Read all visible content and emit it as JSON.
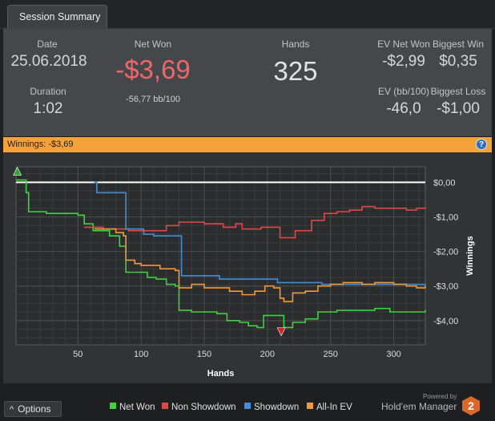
{
  "tab": {
    "label": "Session Summary"
  },
  "summary": {
    "date_label": "Date",
    "date_value": "25.06.2018",
    "duration_label": "Duration",
    "duration_value": "1:02",
    "net_won_label": "Net Won",
    "net_won_value": "-$3,69",
    "net_won_bb": "-56,77 bb/100",
    "hands_label": "Hands",
    "hands_value": "325",
    "ev_net_won_label": "EV Net Won",
    "ev_net_won_value": "-$2,99",
    "biggest_win_label": "Biggest Win",
    "biggest_win_value": "$0,35",
    "ev_bb_label": "EV (bb/100)",
    "ev_bb_value": "-46,0",
    "biggest_loss_label": "Biggest Loss",
    "biggest_loss_value": "-$1,00"
  },
  "winnings_bar": {
    "label": "Winnings:  -$3,69",
    "help_glyph": "?"
  },
  "bottom": {
    "options_label": "Options",
    "options_glyph": "^",
    "powered_by": "Powered by",
    "brand_name": "Hold'em Manager"
  },
  "colors": {
    "net_won": "#3fd13f",
    "non_showdown": "#e04848",
    "showdown": "#3d8fd9",
    "allin_ev": "#f09a3a",
    "accent_red_text": "#f06666",
    "winnings_bar": "#f3a23c"
  },
  "chart_data": {
    "type": "line",
    "xlabel": "Hands",
    "ylabel": "Winnings",
    "xlim": [
      1,
      325
    ],
    "ylim": [
      -4.7,
      0.45
    ],
    "x_ticks": [
      50,
      100,
      150,
      200,
      250,
      300
    ],
    "y_ticks": [
      0,
      -1,
      -2,
      -3,
      -4
    ],
    "y_tick_labels": [
      "$0,00",
      "-$1,00",
      "-$2,00",
      "-$3,00",
      "-$4,00"
    ],
    "grid": true,
    "legend_position": "bottom",
    "series": [
      {
        "name": "Net Won",
        "color": "#3fd13f",
        "points": [
          [
            1,
            0.07
          ],
          [
            6,
            0.07
          ],
          [
            9,
            -0.3
          ],
          [
            11,
            -0.85
          ],
          [
            25,
            -0.9
          ],
          [
            50,
            -0.95
          ],
          [
            55,
            -1.2
          ],
          [
            62,
            -1.4
          ],
          [
            75,
            -1.55
          ],
          [
            83,
            -1.85
          ],
          [
            88,
            -2.6
          ],
          [
            105,
            -2.75
          ],
          [
            112,
            -2.8
          ],
          [
            120,
            -2.95
          ],
          [
            127,
            -3.0
          ],
          [
            130,
            -3.7
          ],
          [
            140,
            -3.75
          ],
          [
            160,
            -3.8
          ],
          [
            168,
            -4.0
          ],
          [
            178,
            -4.05
          ],
          [
            185,
            -4.15
          ],
          [
            192,
            -4.2
          ],
          [
            197,
            -3.85
          ],
          [
            210,
            -3.85
          ],
          [
            213,
            -4.2
          ],
          [
            220,
            -4.05
          ],
          [
            230,
            -3.95
          ],
          [
            240,
            -3.75
          ],
          [
            255,
            -3.7
          ],
          [
            270,
            -3.7
          ],
          [
            285,
            -3.65
          ],
          [
            297,
            -3.75
          ],
          [
            310,
            -3.75
          ],
          [
            325,
            -3.69
          ]
        ]
      },
      {
        "name": "Non Showdown",
        "color": "#e04848",
        "points": [
          [
            55,
            -1.3
          ],
          [
            70,
            -1.35
          ],
          [
            90,
            -1.4
          ],
          [
            120,
            -1.25
          ],
          [
            130,
            -1.15
          ],
          [
            150,
            -1.2
          ],
          [
            165,
            -1.3
          ],
          [
            175,
            -1.2
          ],
          [
            180,
            -1.35
          ],
          [
            195,
            -1.3
          ],
          [
            210,
            -1.6
          ],
          [
            222,
            -1.4
          ],
          [
            235,
            -1.1
          ],
          [
            245,
            -0.9
          ],
          [
            255,
            -0.85
          ],
          [
            265,
            -0.8
          ],
          [
            275,
            -0.7
          ],
          [
            285,
            -0.75
          ],
          [
            300,
            -0.75
          ],
          [
            310,
            -0.8
          ],
          [
            318,
            -0.75
          ],
          [
            325,
            -0.72
          ]
        ]
      },
      {
        "name": "Showdown",
        "color": "#3d8fd9",
        "points": [
          [
            63,
            0.0
          ],
          [
            65,
            -0.3
          ],
          [
            86,
            -0.3
          ],
          [
            88,
            -1.35
          ],
          [
            100,
            -1.35
          ],
          [
            102,
            -1.5
          ],
          [
            108,
            -1.5
          ],
          [
            110,
            -1.55
          ],
          [
            130,
            -1.55
          ],
          [
            132,
            -2.7
          ],
          [
            160,
            -2.7
          ],
          [
            162,
            -2.8
          ],
          [
            205,
            -2.8
          ],
          [
            208,
            -2.9
          ],
          [
            240,
            -2.9
          ],
          [
            243,
            -2.95
          ],
          [
            270,
            -2.95
          ],
          [
            325,
            -2.99
          ]
        ]
      },
      {
        "name": "All-In EV",
        "color": "#f09a3a",
        "points": [
          [
            63,
            -1.35
          ],
          [
            80,
            -1.45
          ],
          [
            86,
            -1.55
          ],
          [
            88,
            -2.25
          ],
          [
            95,
            -2.35
          ],
          [
            100,
            -2.4
          ],
          [
            115,
            -2.5
          ],
          [
            127,
            -2.55
          ],
          [
            130,
            -3.05
          ],
          [
            140,
            -2.95
          ],
          [
            150,
            -3.05
          ],
          [
            165,
            -3.05
          ],
          [
            170,
            -3.15
          ],
          [
            180,
            -3.25
          ],
          [
            190,
            -3.15
          ],
          [
            198,
            -3.0
          ],
          [
            205,
            -3.05
          ],
          [
            210,
            -3.35
          ],
          [
            213,
            -3.45
          ],
          [
            220,
            -3.2
          ],
          [
            230,
            -3.15
          ],
          [
            240,
            -3.0
          ],
          [
            250,
            -2.95
          ],
          [
            260,
            -2.9
          ],
          [
            275,
            -2.95
          ],
          [
            285,
            -2.9
          ],
          [
            300,
            -2.95
          ],
          [
            310,
            -3.0
          ],
          [
            318,
            -3.05
          ],
          [
            325,
            -2.99
          ]
        ]
      }
    ],
    "markers": [
      {
        "name": "max-marker",
        "x": 2,
        "y": 0.3,
        "color": "#2aa82a",
        "shape": "triangle-up"
      },
      {
        "name": "min-marker",
        "x": 211,
        "y": -4.3,
        "color": "#e02020",
        "shape": "triangle-down"
      }
    ]
  }
}
